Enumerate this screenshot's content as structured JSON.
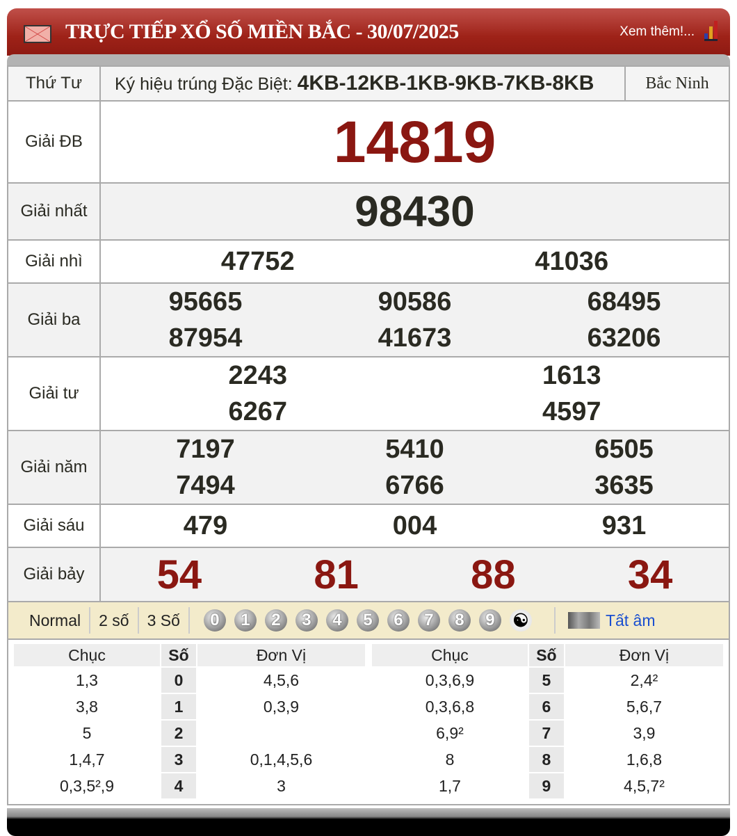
{
  "header": {
    "title": "TRỰC TIẾP XỔ SỐ MIỀN BẮC - 30/07/2025",
    "more_link": "Xem thêm!...",
    "icons": [
      "mail-icon",
      "bar-chart-icon"
    ]
  },
  "info": {
    "day": "Thứ Tư",
    "kyhieu_label": "Ký hiệu trúng Đặc Biệt:",
    "kyhieu": "4KB-12KB-1KB-9KB-7KB-8KB",
    "province": "Bắc Ninh"
  },
  "prizes": [
    {
      "label": "Giải ĐB",
      "numbers": [
        "14819"
      ]
    },
    {
      "label": "Giải nhất",
      "numbers": [
        "98430"
      ]
    },
    {
      "label": "Giải nhì",
      "numbers": [
        "47752",
        "41036"
      ]
    },
    {
      "label": "Giải ba",
      "numbers": [
        "95665",
        "87954",
        "90586",
        "41673",
        "68495",
        "63206"
      ]
    },
    {
      "label": "Giải tư",
      "numbers": [
        "2243",
        "6267",
        "1613",
        "4597"
      ]
    },
    {
      "label": "Giải năm",
      "numbers": [
        "7197",
        "7494",
        "5410",
        "6766",
        "6505",
        "3635"
      ]
    },
    {
      "label": "Giải sáu",
      "numbers": [
        "479",
        "004",
        "931"
      ]
    },
    {
      "label": "Giải bảy",
      "numbers": [
        "54",
        "81",
        "88",
        "34"
      ]
    }
  ],
  "toolbar": {
    "modes": [
      "Normal",
      "2 số",
      "3 Số"
    ],
    "digits": [
      "0",
      "1",
      "2",
      "3",
      "4",
      "5",
      "6",
      "7",
      "8",
      "9"
    ],
    "mute_label": "Tất âm"
  },
  "loto": {
    "headers": [
      "Chục",
      "Số",
      "Đơn Vị"
    ],
    "left": [
      [
        "1,3",
        "0",
        "4,5,6"
      ],
      [
        "3,8",
        "1",
        "0,3,9"
      ],
      [
        "5",
        "2",
        ""
      ],
      [
        "1,4,7",
        "3",
        "0,1,4,5,6"
      ],
      [
        "0,3,5²,9",
        "4",
        "3"
      ]
    ],
    "right": [
      [
        "0,3,6,9",
        "5",
        "2,4²"
      ],
      [
        "0,3,6,8",
        "6",
        "5,6,7"
      ],
      [
        "6,9²",
        "7",
        "3,9"
      ],
      [
        "8",
        "8",
        "1,6,8"
      ],
      [
        "1,7",
        "9",
        "4,5,7²"
      ]
    ]
  },
  "colors": {
    "header_red": "#9e2218",
    "special_number": "#8a1711",
    "toolbar_bg": "#f3ebcb"
  }
}
